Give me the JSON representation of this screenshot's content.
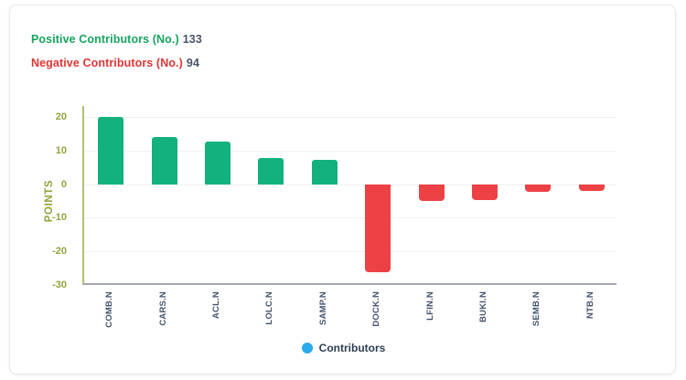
{
  "header": {
    "positive_label": "Positive Contributors (No.)",
    "positive_value": "133",
    "negative_label": "Negative Contributors (No.)",
    "negative_value": "94"
  },
  "legend": {
    "label": "Contributors"
  },
  "colors": {
    "positive": "#12b17e",
    "negative": "#ee4145",
    "positive_text": "#16a45f",
    "negative_text": "#e23434",
    "value_text": "#4a5568",
    "axis_text": "#93a33d",
    "yaxis_line": "#b3bf72",
    "xaxis_line": "#a3a6ad",
    "xlabel_text": "#44546b",
    "grid": "#f1f1f1",
    "legend_dot": "#2ba9ea",
    "card_border": "#e7e7e7"
  },
  "chart_data": {
    "type": "bar",
    "categories": [
      "COMB.N",
      "CARS.N",
      "ACL.N",
      "LOLC.N",
      "SAMP.N",
      "DOCK.N",
      "LFIN.N",
      "BUKI.N",
      "SEMB.N",
      "NTB.N"
    ],
    "values": [
      20,
      13.9,
      12.6,
      7.8,
      7.1,
      -26.3,
      -5.1,
      -4.6,
      -2.4,
      -2.1
    ],
    "title": "",
    "xlabel": "",
    "ylabel": "POINTS",
    "ylim": [
      -30,
      20
    ],
    "yticks": [
      20,
      10,
      0,
      -10,
      -20,
      -30
    ],
    "grid": true,
    "legend_entries": [
      "Contributors"
    ],
    "legend_position": "bottom"
  }
}
